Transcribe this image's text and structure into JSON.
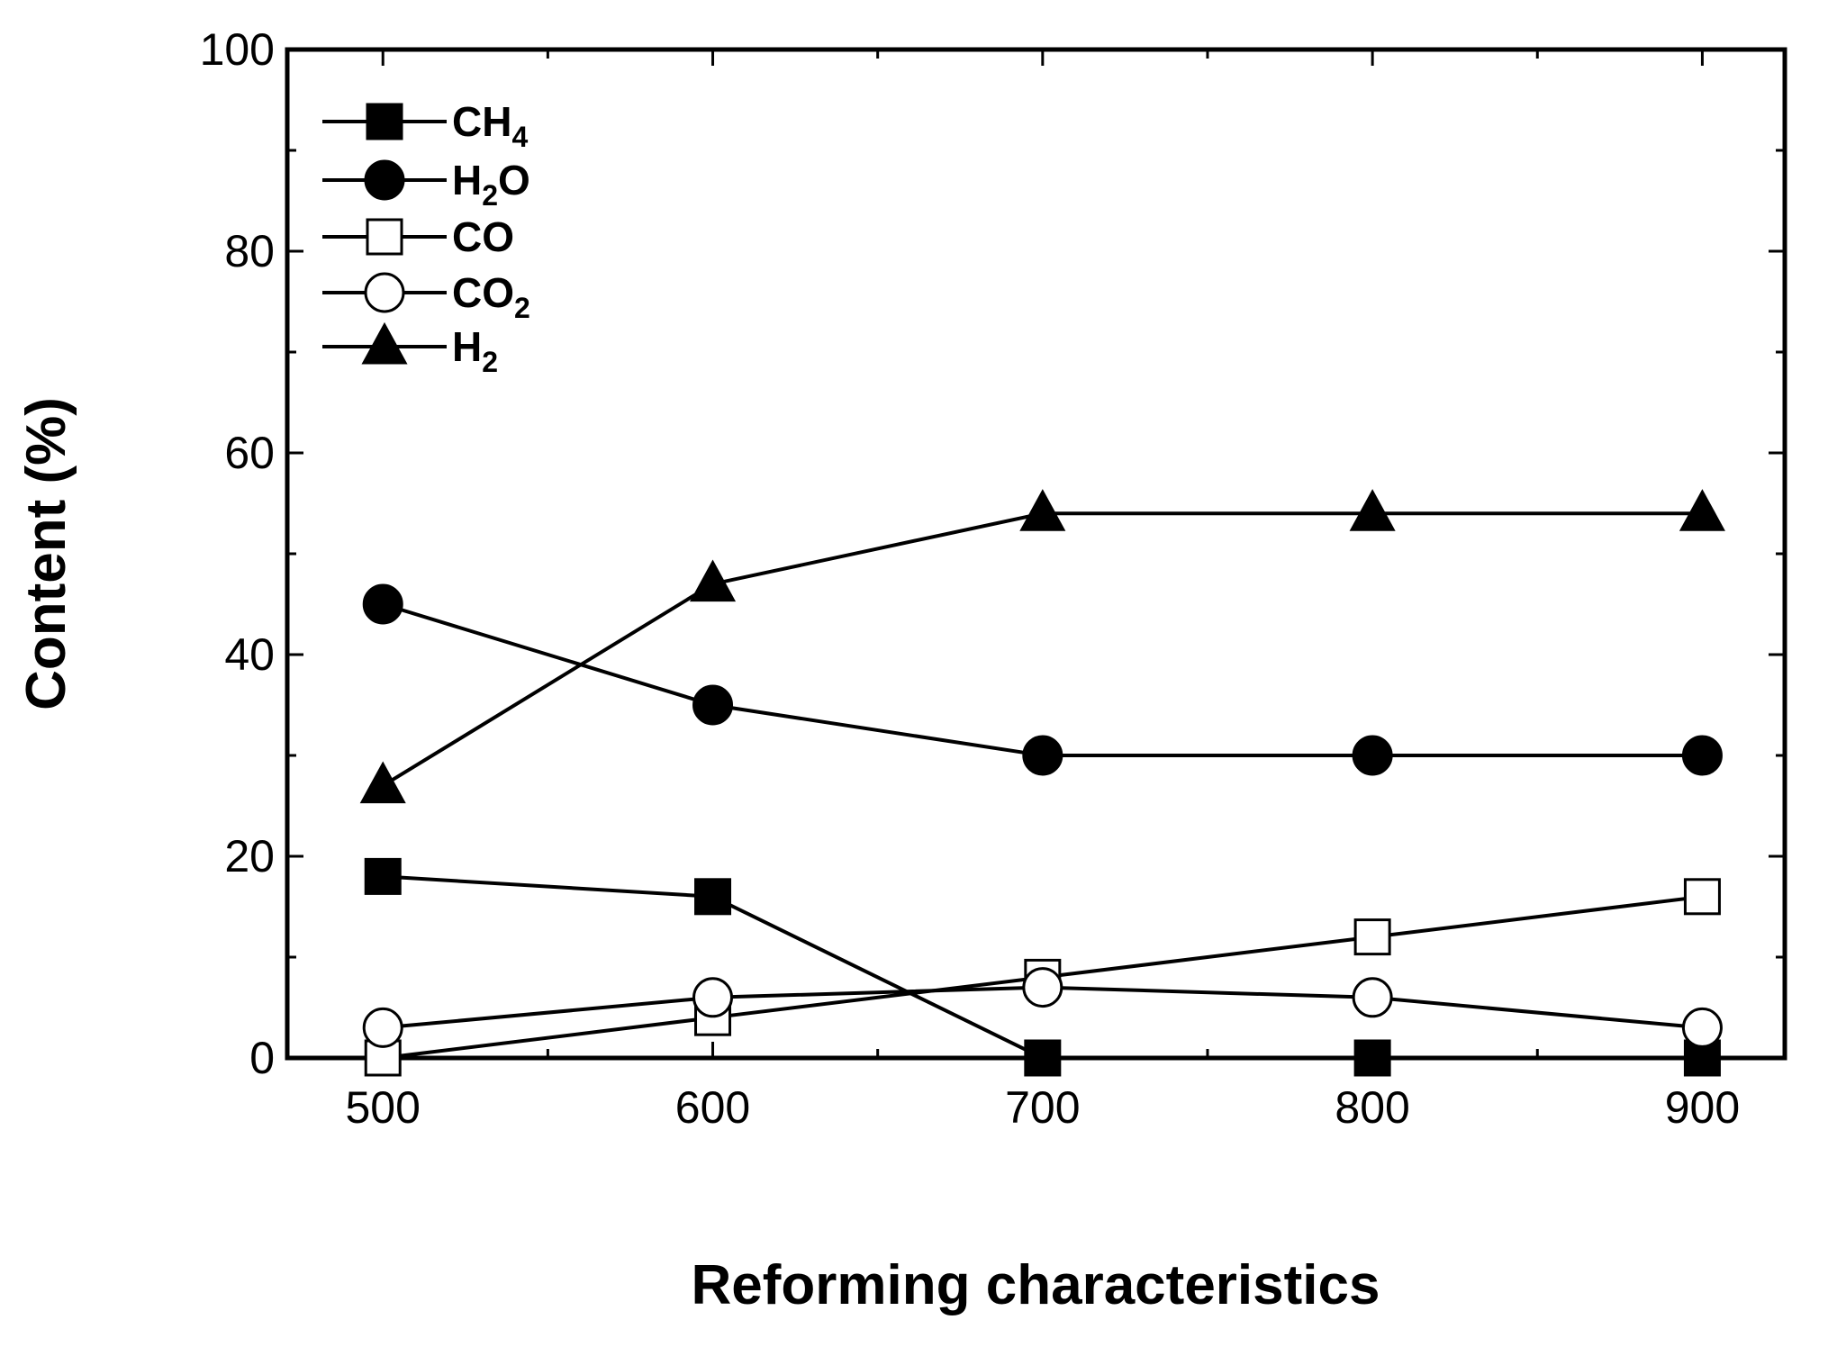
{
  "chart_data": {
    "type": "line",
    "title": "",
    "xlabel": "Reforming characteristics",
    "ylabel": "Content (%)",
    "x": [
      500,
      600,
      700,
      800,
      900
    ],
    "xlim": [
      471,
      925
    ],
    "ylim": [
      0,
      100
    ],
    "x_ticks": [
      "500",
      "600",
      "700",
      "800",
      "900"
    ],
    "y_ticks": [
      "0",
      "20",
      "40",
      "60",
      "80",
      "100"
    ],
    "grid": false,
    "legend_position": "top-left",
    "series": [
      {
        "name": "CH4",
        "label_main": "CH",
        "label_sub": "4",
        "label_tail": "",
        "marker": "square",
        "filled": true,
        "values": [
          18,
          16,
          0,
          0,
          0
        ]
      },
      {
        "name": "H2O",
        "label_main": "H",
        "label_sub": "2",
        "label_tail": "O",
        "marker": "circle",
        "filled": true,
        "values": [
          45,
          35,
          30,
          30,
          30
        ]
      },
      {
        "name": "CO",
        "label_main": "CO",
        "label_sub": "",
        "label_tail": "",
        "marker": "square",
        "filled": false,
        "values": [
          0,
          4,
          8,
          12,
          16
        ]
      },
      {
        "name": "CO2",
        "label_main": "CO",
        "label_sub": "2",
        "label_tail": "",
        "marker": "circle",
        "filled": false,
        "values": [
          3,
          6,
          7,
          6,
          3
        ]
      },
      {
        "name": "H2",
        "label_main": "H",
        "label_sub": "2",
        "label_tail": "",
        "marker": "triangle",
        "filled": true,
        "values": [
          27,
          47,
          54,
          54,
          54
        ]
      }
    ]
  }
}
